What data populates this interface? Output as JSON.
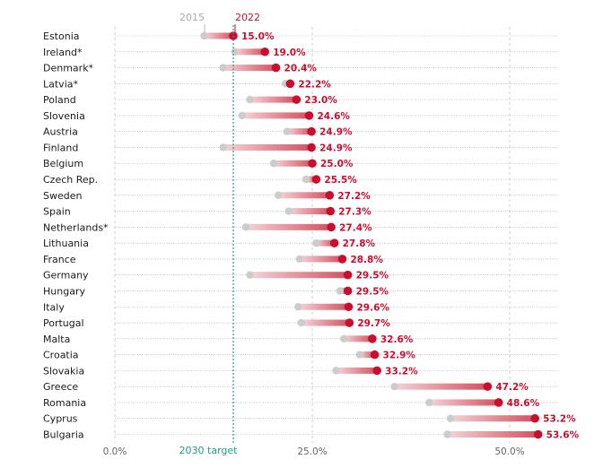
{
  "chart_data": {
    "type": "dumbbell",
    "legend": {
      "start_label": "2015",
      "end_label": "2022"
    },
    "target": {
      "label": "2030 target",
      "value": 15.0
    },
    "xlim": [
      0,
      55
    ],
    "xticks": [
      {
        "value": 0,
        "label": "0.0%"
      },
      {
        "value": 25,
        "label": "25.0%"
      },
      {
        "value": 50,
        "label": "50.0%"
      }
    ],
    "grid": true,
    "colors": {
      "start": "#cccccc",
      "end": "#c8102e",
      "target": "#1a9e96",
      "grid": "#9a9a9a"
    },
    "categories": [
      "Estonia",
      "Ireland*",
      "Denmark*",
      "Latvia*",
      "Poland",
      "Slovenia",
      "Austria",
      "Finland",
      "Belgium",
      "Czech Rep.",
      "Sweden",
      "Spain",
      "Netherlands*",
      "Lithuania",
      "France",
      "Germany",
      "Hungary",
      "Italy",
      "Portugal",
      "Malta",
      "Croatia",
      "Slovakia",
      "Greece",
      "Romania",
      "Cyprus",
      "Bulgaria"
    ],
    "series": [
      {
        "name": "2015",
        "values": [
          11.3,
          15.2,
          13.7,
          21.6,
          17.1,
          16.1,
          21.8,
          13.7,
          20.1,
          24.2,
          20.7,
          22.0,
          16.6,
          25.5,
          23.4,
          17.1,
          28.5,
          23.2,
          23.6,
          29.0,
          31.0,
          28.0,
          35.4,
          39.8,
          42.5,
          42.1
        ]
      },
      {
        "name": "2022",
        "values": [
          15.0,
          19.0,
          20.4,
          22.2,
          23.0,
          24.6,
          24.9,
          24.9,
          25.0,
          25.5,
          27.2,
          27.3,
          27.4,
          27.8,
          28.8,
          29.5,
          29.5,
          29.6,
          29.7,
          32.6,
          32.9,
          33.2,
          47.2,
          48.6,
          53.2,
          53.6
        ]
      }
    ],
    "value_labels": [
      "15.0%",
      "19.0%",
      "20.4%",
      "22.2%",
      "23.0%",
      "24.6%",
      "24.9%",
      "24.9%",
      "25.0%",
      "25.5%",
      "27.2%",
      "27.3%",
      "27.4%",
      "27.8%",
      "28.8%",
      "29.5%",
      "29.5%",
      "29.6%",
      "29.7%",
      "32.6%",
      "32.9%",
      "33.2%",
      "47.2%",
      "48.6%",
      "53.2%",
      "53.6%"
    ]
  }
}
